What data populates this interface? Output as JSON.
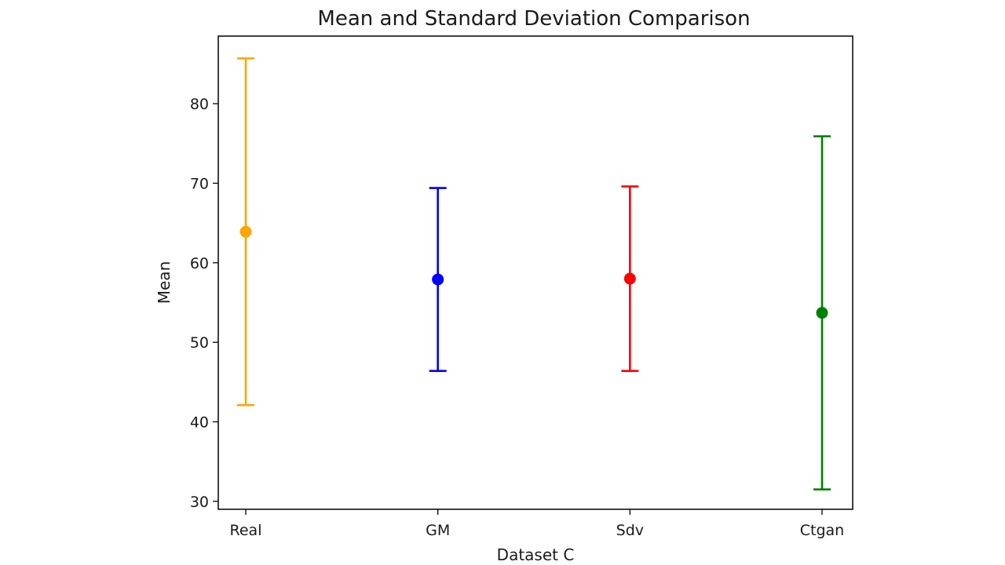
{
  "chart_data": {
    "type": "errorbar",
    "title": "Mean and Standard Deviation Comparison",
    "xlabel": "Dataset C",
    "ylabel": "Mean",
    "categories": [
      "Real",
      "GM",
      "Sdv",
      "Ctgan"
    ],
    "ylim": [
      29,
      88.5
    ],
    "yticks": [
      "30",
      "40",
      "50",
      "60",
      "70",
      "80"
    ],
    "grid": false,
    "series": [
      {
        "category": "Real",
        "mean": 63.9,
        "std": 21.8,
        "color": "#ffa500"
      },
      {
        "category": "GM",
        "mean": 57.9,
        "std": 11.5,
        "color": "#0000ff"
      },
      {
        "category": "Sdv",
        "mean": 58.0,
        "std": 11.6,
        "color": "#ff0000"
      },
      {
        "category": "Ctgan",
        "mean": 53.7,
        "std": 22.2,
        "color": "#008000"
      }
    ]
  }
}
